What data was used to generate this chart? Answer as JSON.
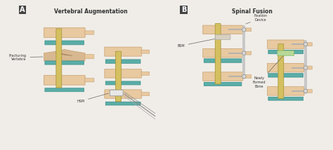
{
  "bg_color": "#f0ede8",
  "panel_bg": "#f5f2ee",
  "bone_color": "#e8c9a0",
  "bone_edge": "#c8a070",
  "disc_color": "#5aada8",
  "disc_edge": "#3a8d88",
  "nerve_color": "#d4c060",
  "nerve_edge": "#a09030",
  "hsm_color": "#e8e8e8",
  "hsm_edge": "#999999",
  "fixation_color": "#c8c8c8",
  "fixation_edge": "#808080",
  "label_color": "#333333",
  "title_A": "Vertebral Augmentation",
  "title_B": "Spinal Fusion",
  "label_fracture": "Fracturing\nVertebra",
  "label_hsm": "HSM",
  "label_bsm": "BSM",
  "label_fixation": "Fixation\nDevice",
  "label_newly": "Newly\nFormed\nBone",
  "panel_A_label": "A",
  "panel_B_label": "B"
}
